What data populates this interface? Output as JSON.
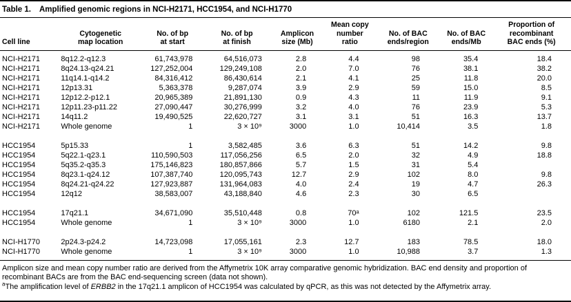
{
  "table": {
    "label": "Table 1.",
    "title": "Amplified genomic regions in NCI-H2171, HCC1954, and NCI-H1770",
    "columns": [
      {
        "header": "Cell line",
        "align": "left"
      },
      {
        "header": "Cytogenetic\nmap location",
        "align": "left"
      },
      {
        "header": "No. of bp\nat start",
        "align": "right"
      },
      {
        "header": "No. of bp\nat finish",
        "align": "right"
      },
      {
        "header": "Amplicon\nsize (Mb)",
        "align": "right"
      },
      {
        "header": "Mean copy\nnumber\nratio",
        "align": "right"
      },
      {
        "header": "No. of BAC\nends/region",
        "align": "right"
      },
      {
        "header": "No. of BAC\nends/Mb",
        "align": "right"
      },
      {
        "header": "Proportion of\nrecombinant\nBAC ends (%)",
        "align": "right"
      }
    ],
    "groups": [
      {
        "rows": [
          [
            "NCI-H2171",
            "8q12.2-q12.3",
            "61,743,978",
            "64,516,073",
            "2.8",
            "4.4",
            "98",
            "35.4",
            "18.4"
          ],
          [
            "NCI-H2171",
            "8q24.13-q24.21",
            "127,252,004",
            "129,249,108",
            "2.0",
            "7.0",
            "76",
            "38.1",
            "38.2"
          ],
          [
            "NCI-H2171",
            "11q14.1-q14.2",
            "84,316,412",
            "86,430,614",
            "2.1",
            "4.1",
            "25",
            "11.8",
            "20.0"
          ],
          [
            "NCI-H2171",
            "12p13.31",
            "5,363,378",
            "9,287,074",
            "3.9",
            "2.9",
            "59",
            "15.0",
            "8.5"
          ],
          [
            "NCI-H2171",
            "12p12.2-p12.1",
            "20,965,389",
            "21,891,130",
            "0.9",
            "4.3",
            "11",
            "11.9",
            "9.1"
          ],
          [
            "NCI-H2171",
            "12p11.23-p11.22",
            "27,090,447",
            "30,276,999",
            "3.2",
            "4.0",
            "76",
            "23.9",
            "5.3"
          ],
          [
            "NCI-H2171",
            "14q11.2",
            "19,490,525",
            "22,620,727",
            "3.1",
            "3.1",
            "51",
            "16.3",
            "13.7"
          ],
          [
            "NCI-H2171",
            "Whole genome",
            "1",
            "3 × 10⁹",
            "3000",
            "1.0",
            "10,414",
            "3.5",
            "1.8"
          ]
        ]
      },
      {
        "rows": [
          [
            "HCC1954",
            "5p15.33",
            "1",
            "3,582,485",
            "3.6",
            "6.3",
            "51",
            "14.2",
            "9.8"
          ],
          [
            "HCC1954",
            "5q22.1-q23.1",
            "110,590,503",
            "117,056,256",
            "6.5",
            "2.0",
            "32",
            "4.9",
            "18.8"
          ],
          [
            "HCC1954",
            "5q35.2-q35.3",
            "175,146,823",
            "180,857,866",
            "5.7",
            "1.5",
            "31",
            "5.4",
            ""
          ],
          [
            "HCC1954",
            "8q23.1-q24.12",
            "107,387,740",
            "120,095,743",
            "12.7",
            "2.9",
            "102",
            "8.0",
            "9.8"
          ],
          [
            "HCC1954",
            "8q24.21-q24.22",
            "127,923,887",
            "131,964,083",
            "4.0",
            "2.4",
            "19",
            "4.7",
            "26.3"
          ],
          [
            "HCC1954",
            "12q12",
            "38,583,007",
            "43,188,840",
            "4.6",
            "2.3",
            "30",
            "6.5",
            ""
          ]
        ]
      },
      {
        "rows": [
          [
            "HCC1954",
            "17q21.1",
            "34,671,090",
            "35,510,448",
            "0.8",
            "70ᵃ",
            "102",
            "121.5",
            "23.5"
          ],
          [
            "HCC1954",
            "Whole genome",
            "1",
            "3 × 10⁹",
            "3000",
            "1.0",
            "6180",
            "2.1",
            "2.0"
          ]
        ]
      },
      {
        "rows": [
          [
            "NCI-H1770",
            "2p24.3-p24.2",
            "14,723,098",
            "17,055,161",
            "2.3",
            "12.7",
            "183",
            "78.5",
            "18.0"
          ],
          [
            "NCI-H1770",
            "Whole genome",
            "1",
            "3 × 10⁹",
            "3000",
            "1.0",
            "10,988",
            "3.7",
            "1.3"
          ]
        ]
      }
    ]
  },
  "footnotes": {
    "general": "Amplicon size and mean copy number ratio are derived from the Affymetrix 10K array comparative genomic hybridization. BAC end density and proportion of recombinant BACs are from the BAC end-sequencing screen (data not shown).",
    "note_a": {
      "marker": "a",
      "pre": "The amplification level of ",
      "gene": "ERBB2",
      "post": " in the 17q21.1 amplicon of HCC1954 was calculated by qPCR, as this was not detected by the Affymetrix array."
    }
  }
}
